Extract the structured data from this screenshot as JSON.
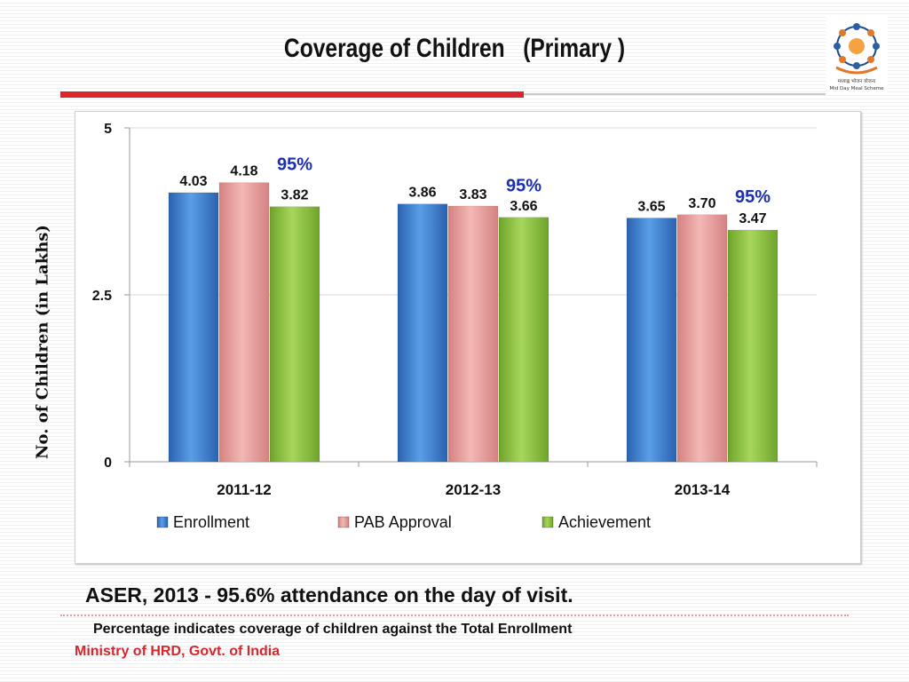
{
  "slide": {
    "title": "Coverage of Children   (Primary )",
    "logo_text": "मध्याह्न भोजन योजना",
    "logo_subtext": "Mid Day Meal Scheme",
    "footnote_main": "ASER, 2013 -  95.6% attendance on the day of visit.",
    "footnote_sub": "Percentage indicates coverage of children against the Total Enrollment",
    "source": "Ministry of HRD, Govt. of India"
  },
  "chart_data": {
    "type": "bar",
    "ylabel": "No. of Children (in Lakhs)",
    "ylim": [
      0,
      5
    ],
    "yticks": [
      "0",
      "2.5",
      "5"
    ],
    "yticks_values": [
      0,
      2.5,
      5
    ],
    "categories": [
      "2011-12",
      "2012-13",
      "2013-14"
    ],
    "series": [
      {
        "name": "Enrollment",
        "values": [
          4.03,
          3.86,
          3.65
        ],
        "labels": [
          "4.03",
          "3.86",
          "3.65"
        ],
        "color": "#3a7fd5"
      },
      {
        "name": "PAB Approval",
        "values": [
          4.18,
          3.83,
          3.7
        ],
        "labels": [
          "4.18",
          "3.83",
          "3.70"
        ],
        "color": "#e8a09e"
      },
      {
        "name": "Achievement",
        "values": [
          3.82,
          3.66,
          3.47
        ],
        "labels": [
          "3.82",
          "3.66",
          "3.47"
        ],
        "color": "#8cc43c"
      }
    ],
    "annotations": [
      "95%",
      "95%",
      "95%"
    ],
    "annotation_color": "#1a2fb4",
    "legend_position": "bottom",
    "grid": true
  }
}
